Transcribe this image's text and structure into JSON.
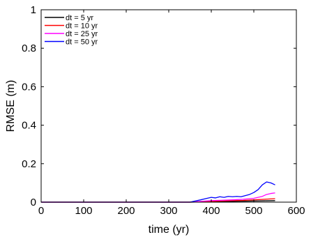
{
  "chart_data": {
    "type": "line",
    "title": "",
    "xlabel": "time (yr)",
    "ylabel": "RMSE (m)",
    "xlim": [
      0,
      600
    ],
    "ylim": [
      0,
      1
    ],
    "xticks": [
      0,
      100,
      200,
      300,
      400,
      500,
      600
    ],
    "yticks": [
      0,
      0.2,
      0.4,
      0.6,
      0.8,
      1
    ],
    "xtick_labels": [
      "0",
      "100",
      "200",
      "300",
      "400",
      "500",
      "600"
    ],
    "ytick_labels": [
      "0",
      "0.2",
      "0.4",
      "0.6",
      "0.8",
      "1"
    ],
    "grid": false,
    "legend_position": "top-left",
    "series": [
      {
        "name": "dt = 5 yr",
        "color": "#000000",
        "x": [
          0,
          350,
          375,
          400,
          425,
          450,
          475,
          500,
          525,
          550
        ],
        "y": [
          0,
          0,
          0.001,
          0.002,
          0.003,
          0.004,
          0.005,
          0.006,
          0.007,
          0.008
        ]
      },
      {
        "name": "dt = 10 yr",
        "color": "#ff0000",
        "x": [
          0,
          350,
          375,
          400,
          425,
          450,
          475,
          500,
          525,
          550
        ],
        "y": [
          0,
          0,
          0.002,
          0.004,
          0.006,
          0.008,
          0.009,
          0.012,
          0.015,
          0.018
        ]
      },
      {
        "name": "dt = 25 yr",
        "color": "#ff00ff",
        "x": [
          0,
          350,
          375,
          400,
          425,
          450,
          475,
          500,
          520,
          530,
          540,
          550
        ],
        "y": [
          0,
          0,
          0.004,
          0.008,
          0.01,
          0.012,
          0.015,
          0.02,
          0.03,
          0.04,
          0.045,
          0.048
        ]
      },
      {
        "name": "dt = 50 yr",
        "color": "#0000ff",
        "x": [
          0,
          350,
          360,
          375,
          390,
          400,
          410,
          420,
          430,
          440,
          450,
          460,
          470,
          480,
          490,
          500,
          510,
          520,
          530,
          540,
          550
        ],
        "y": [
          0,
          0,
          0.005,
          0.012,
          0.02,
          0.025,
          0.022,
          0.028,
          0.025,
          0.03,
          0.028,
          0.03,
          0.028,
          0.034,
          0.04,
          0.05,
          0.065,
          0.09,
          0.105,
          0.1,
          0.09
        ]
      }
    ]
  }
}
